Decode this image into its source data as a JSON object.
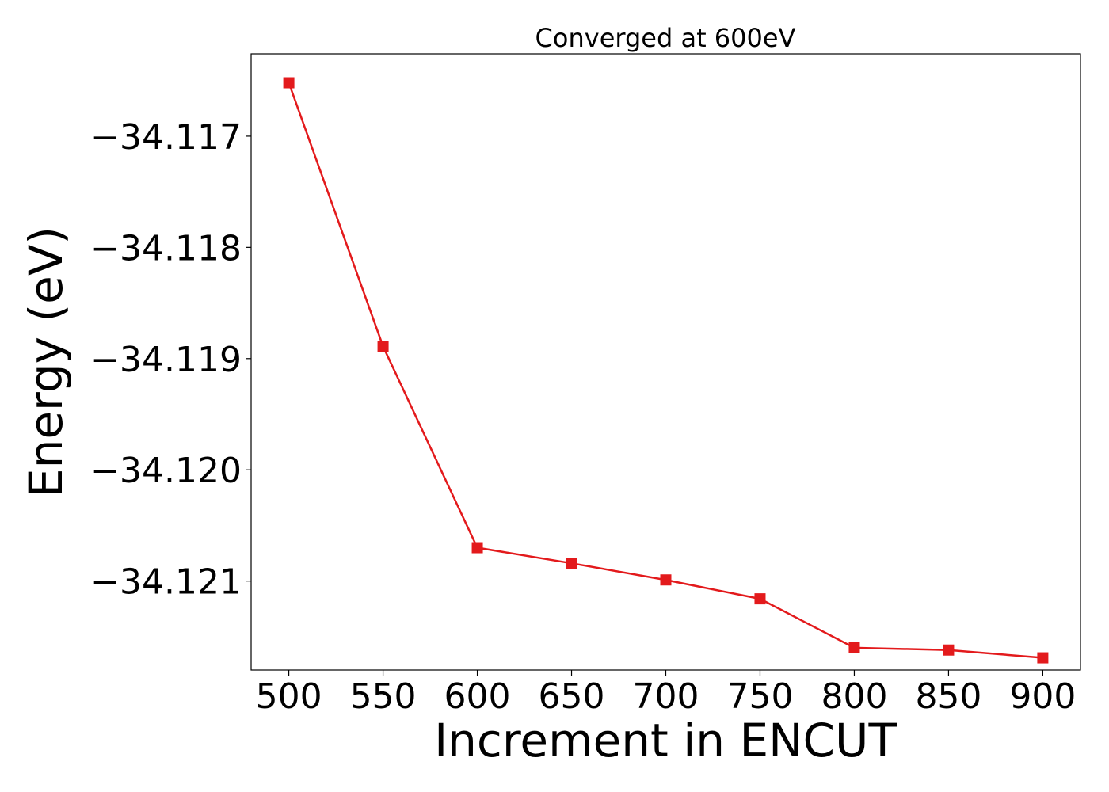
{
  "chart_data": {
    "type": "line",
    "title": "Converged at 600eV",
    "xlabel": "Increment in ENCUT",
    "ylabel": "Energy (eV)",
    "x": [
      500,
      550,
      600,
      650,
      700,
      750,
      800,
      850,
      900
    ],
    "series": [
      {
        "values": [
          -34.11652,
          -34.11889,
          -34.1207,
          -34.12084,
          -34.12099,
          -34.12116,
          -34.1216,
          -34.12162,
          -34.12169
        ],
        "color": "#e31a1c",
        "marker": "square"
      }
    ],
    "xticks": [
      500,
      550,
      600,
      650,
      700,
      750,
      800,
      850,
      900
    ],
    "xtick_labels": [
      "500",
      "550",
      "600",
      "650",
      "700",
      "750",
      "800",
      "850",
      "900"
    ],
    "yticks": [
      -34.117,
      -34.118,
      -34.119,
      -34.12,
      -34.121
    ],
    "ytick_labels": [
      "−34.117",
      "−34.118",
      "−34.119",
      "−34.120",
      "−34.121"
    ],
    "xlim": [
      480,
      920
    ],
    "ylim": [
      -34.1218,
      -34.11626
    ],
    "grid": false,
    "legend": false
  }
}
